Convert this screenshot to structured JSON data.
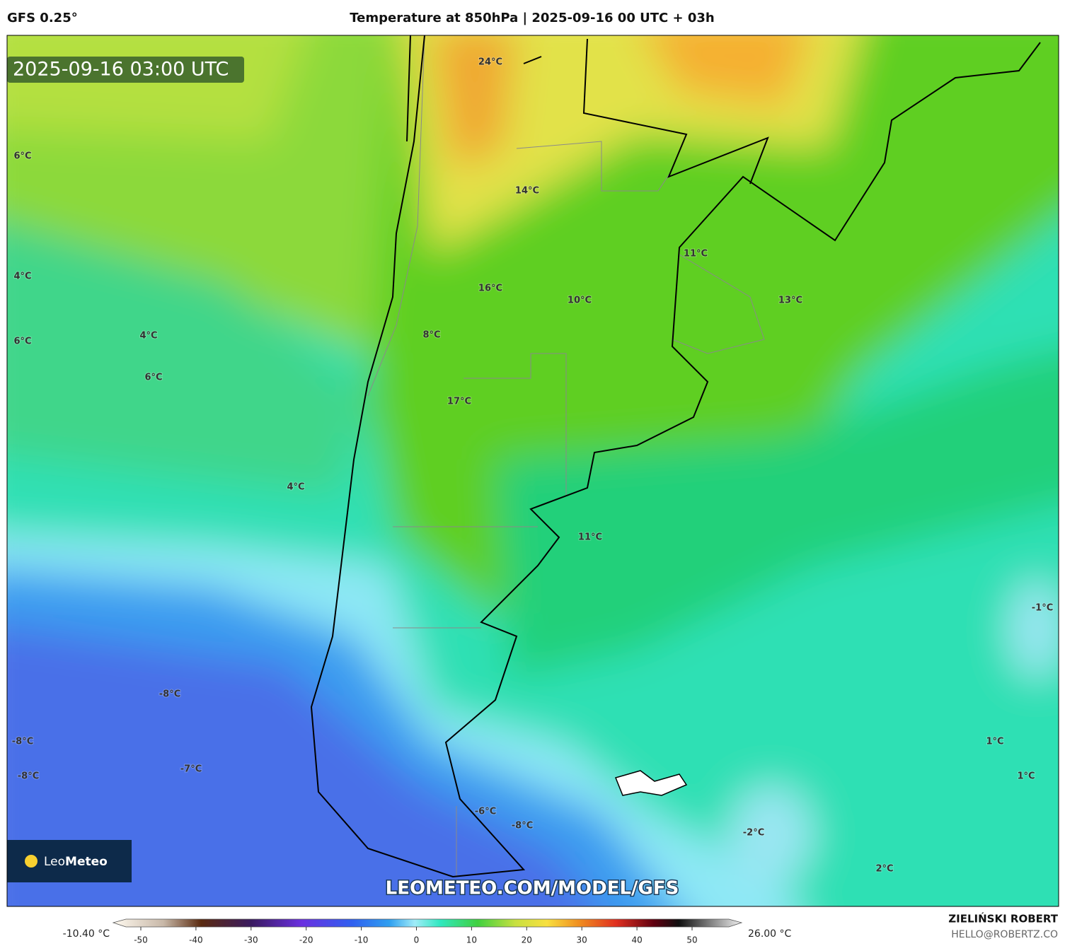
{
  "header": {
    "model": "GFS 0.25°",
    "title": "Temperature at 850hPa | 2025-09-16 00 UTC + 03h"
  },
  "timestamp": "2025-09-16 03:00 UTC",
  "map_labels": [
    "24°C",
    "6°C",
    "14°C",
    "4°C",
    "11°C",
    "16°C",
    "10°C",
    "13°C",
    "8°C",
    "4°C",
    "6°C",
    "6°C",
    "17°C",
    "4°C",
    "11°C",
    "-1°C",
    "-8°C",
    "-8°C",
    "1°C",
    "-8°C",
    "-7°C",
    "1°C",
    "-6°C",
    "-8°C",
    "-2°C",
    "2°C"
  ],
  "watermark": "LEOMETEO.COM/MODEL/GFS",
  "logo": {
    "leo": "Leo",
    "meteo": "Meteo"
  },
  "colorbar": {
    "min_label": "-10.40 °C",
    "max_label": "26.00 °C",
    "ticks": [
      -50,
      -40,
      -30,
      -20,
      -10,
      0,
      10,
      20,
      30,
      40,
      50
    ]
  },
  "credits": {
    "author": "ZIELIŃSKI ROBERT",
    "email": "HELLO@ROBERTZ.CO"
  }
}
